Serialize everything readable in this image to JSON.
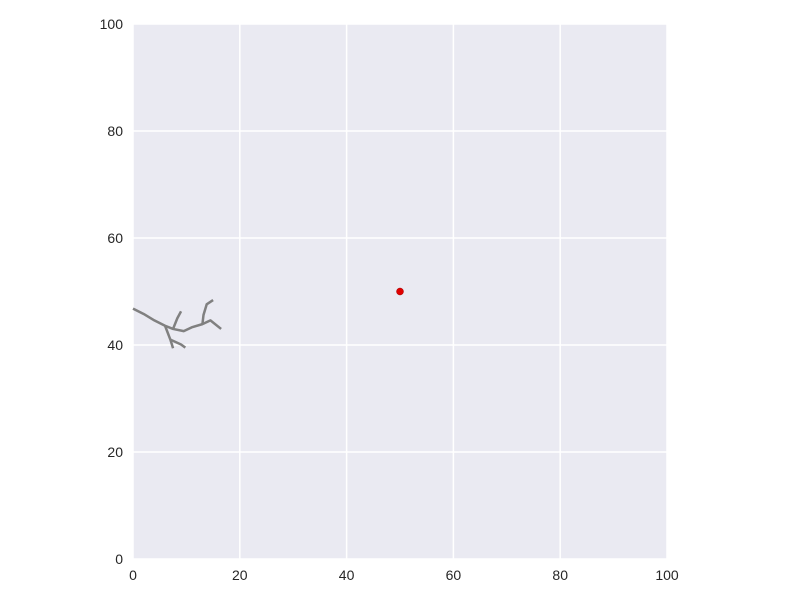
{
  "chart_data": {
    "type": "line",
    "title": "",
    "xlabel": "",
    "ylabel": "",
    "xlim": [
      0,
      100
    ],
    "ylim": [
      0,
      100
    ],
    "grid": true,
    "xticks": [
      "0",
      "20",
      "40",
      "60",
      "80",
      "100"
    ],
    "yticks": [
      "0",
      "20",
      "40",
      "60",
      "80",
      "100"
    ],
    "colors": {
      "background": "#eaeaf2",
      "grid": "#ffffff",
      "branches": "#808080",
      "point": "#e00000"
    },
    "series": [
      {
        "x": [
          0,
          2,
          4,
          6,
          7.5,
          9.5,
          11,
          13,
          14.5,
          16.5
        ],
        "y": [
          46.8,
          45.8,
          44.6,
          43.6,
          43.0,
          42.6,
          43.3,
          43.9,
          44.6,
          43.0
        ]
      },
      {
        "x": [
          6,
          7,
          7.5
        ],
        "y": [
          43.6,
          41.0,
          39.4
        ]
      },
      {
        "x": [
          7,
          9,
          9.8
        ],
        "y": [
          41.0,
          40.1,
          39.5
        ]
      },
      {
        "x": [
          7.5,
          8.3,
          9
        ],
        "y": [
          43.0,
          45.0,
          46.3
        ]
      },
      {
        "x": [
          13,
          13.2,
          13.8,
          15
        ],
        "y": [
          43.9,
          45.6,
          47.6,
          48.4
        ]
      }
    ],
    "points": [
      {
        "x": 50,
        "y": 50
      }
    ]
  }
}
